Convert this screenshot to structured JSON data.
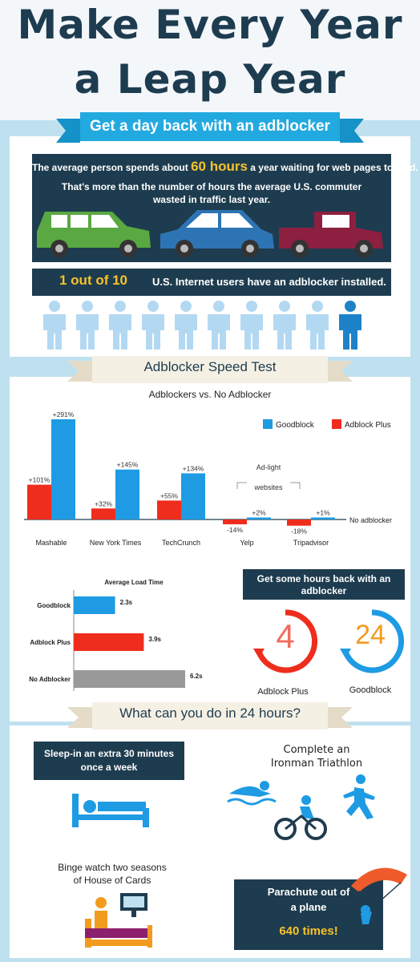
{
  "title": {
    "line1": "Make Every Year",
    "line2": "a Leap Year"
  },
  "section1": {
    "ribbon": "Get a day back with an adblocker",
    "stat_prefix": "The average person spends about",
    "stat_highlight": "60 hours",
    "stat_suffix": "a year waiting for web pages to load.",
    "commuter_line1": "That's more than the number of hours the average U.S. commuter",
    "commuter_line2": "wasted in traffic last year.",
    "cars": [
      {
        "name": "car-green",
        "color": "#5aa842"
      },
      {
        "name": "car-blue",
        "color": "#2d74b4"
      },
      {
        "name": "truck-red",
        "color": "#8d1f41"
      }
    ],
    "users_highlight": "1 out of 10",
    "users_text": "U.S. Internet users have an adblocker installed.",
    "people_total": 10,
    "people_highlighted": 1
  },
  "section2": {
    "ribbon": "Adblocker Speed Test",
    "chart_title": "Adblockers vs. No Adblocker",
    "annotation_line1": "Ad-light",
    "annotation_line2": "websites",
    "baseline_label": "No adblocker",
    "colors": {
      "goodblock": "#1e9be3",
      "adblock_plus": "#ef2d1c",
      "no_adblocker": "#999999"
    },
    "load_title": "Average Load Time",
    "hours_back_line1": "Get some hours back with an",
    "hours_back_line2": "adblocker",
    "clock_adblock_plus_value": "4",
    "clock_adblock_plus_label": "Adblock Plus",
    "clock_goodblock_value": "24",
    "clock_goodblock_label": "Goodblock"
  },
  "chart_data": [
    {
      "type": "bar",
      "title": "Adblockers vs. No Adblocker",
      "categories": [
        "Mashable",
        "New York Times",
        "TechCrunch",
        "Yelp",
        "Tripadvisor"
      ],
      "series": [
        {
          "name": "Adblock Plus",
          "values": [
            101,
            32,
            55,
            -14,
            -18
          ],
          "labels": [
            "+101%",
            "+32%",
            "+55%",
            "-14%",
            "-18%"
          ]
        },
        {
          "name": "Goodblock",
          "values": [
            291,
            145,
            134,
            2,
            1
          ],
          "labels": [
            "+291%",
            "+145%",
            "+134%",
            "+2%",
            "+1%"
          ]
        }
      ],
      "legend_position": "top-right"
    },
    {
      "type": "bar",
      "title": "Average Load Time",
      "categories": [
        "Goodblock",
        "Adblock Plus",
        "No Adblocker"
      ],
      "values": [
        2.3,
        3.9,
        6.2
      ],
      "labels": [
        "2.3s",
        "3.9s",
        "6.2s"
      ]
    }
  ],
  "section3": {
    "ribbon": "What can you do in 24 hours?",
    "sleep_line1": "Sleep-in an extra 30 minutes",
    "sleep_line2": "once a week",
    "ironman_line1": "Complete an",
    "ironman_line2": "Ironman Triathlon",
    "binge_line1": "Binge watch two seasons",
    "binge_line2": "of House of Cards",
    "parachute_line1": "Parachute out of",
    "parachute_line2": "a plane",
    "parachute_highlight": "640 times!"
  }
}
